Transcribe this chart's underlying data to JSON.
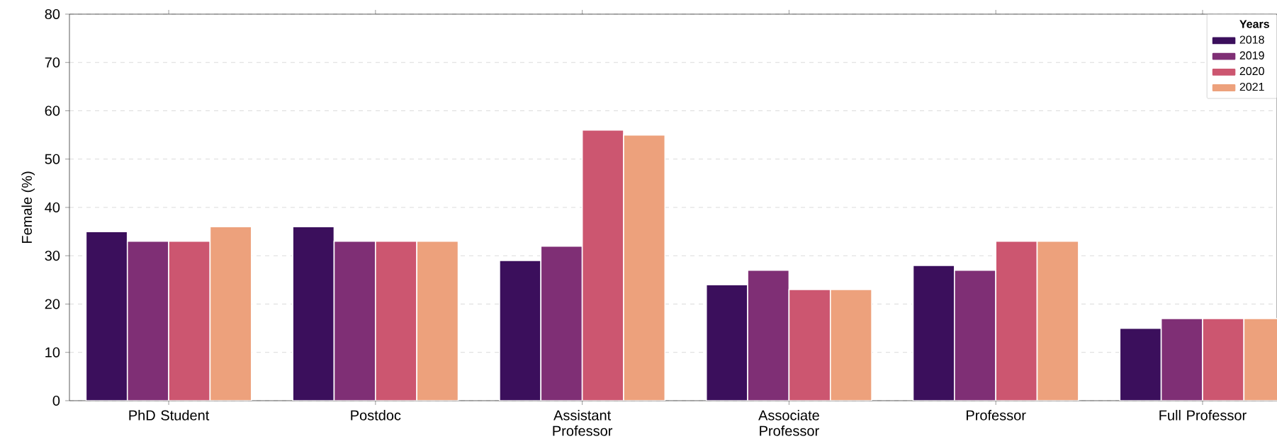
{
  "chart_data": {
    "type": "bar",
    "ylabel": "Female (%)",
    "legend_title": "Years",
    "categories": [
      "PhD Student",
      "Postdoc",
      "Assistant Professor",
      "Associate Professor",
      "Professor",
      "Full Professor"
    ],
    "series": [
      {
        "name": "2018",
        "color": "#3b0f5c",
        "values": [
          35,
          36,
          29,
          24,
          28,
          15
        ]
      },
      {
        "name": "2019",
        "color": "#7f2f75",
        "values": [
          33,
          33,
          32,
          27,
          27,
          17
        ]
      },
      {
        "name": "2020",
        "color": "#cc5670",
        "values": [
          33,
          33,
          56,
          23,
          33,
          17
        ]
      },
      {
        "name": "2021",
        "color": "#eda17c",
        "values": [
          36,
          33,
          55,
          23,
          33,
          17
        ]
      }
    ],
    "ylim": [
      0,
      80
    ],
    "yticks": [
      0,
      10,
      20,
      30,
      40,
      50,
      60,
      70,
      80
    ],
    "grid": "y",
    "legend": "top right"
  }
}
